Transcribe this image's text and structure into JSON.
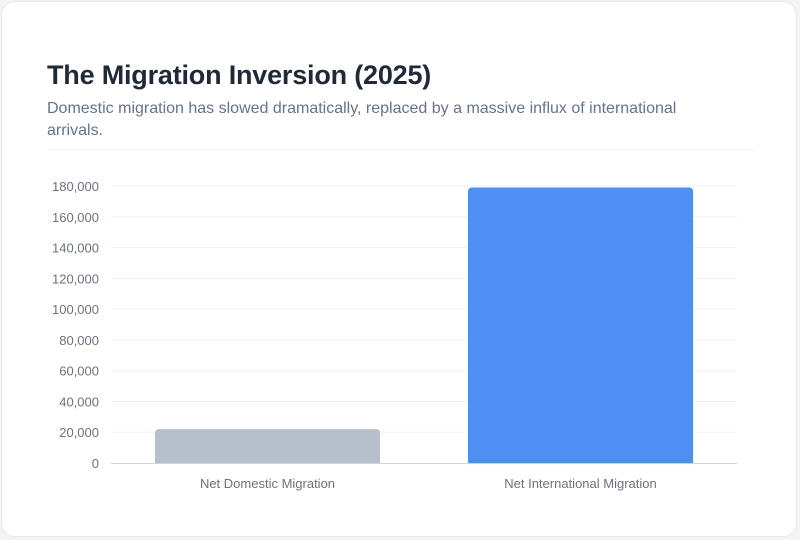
{
  "header": {
    "title": "The Migration Inversion (2025)",
    "subtitle": "Domestic migration has slowed dramatically, replaced by a massive influx of international arrivals."
  },
  "chart_data": {
    "type": "bar",
    "title": "The Migration Inversion (2025)",
    "subtitle": "Domestic migration has slowed dramatically, replaced by a massive influx of international arrivals.",
    "categories": [
      "Net Domestic Migration",
      "Net International Migration"
    ],
    "values": [
      22000,
      179000
    ],
    "colors": [
      "#b6bfcc",
      "#4e8ff3"
    ],
    "ylim": [
      0,
      180000
    ],
    "yticks": [
      0,
      20000,
      40000,
      60000,
      80000,
      100000,
      120000,
      140000,
      160000,
      180000
    ],
    "ytick_labels": [
      "0",
      "20,000",
      "40,000",
      "60,000",
      "80,000",
      "100,000",
      "120,000",
      "140,000",
      "160,000",
      "180,000"
    ],
    "xlabel": "",
    "ylabel": "",
    "grid": true,
    "legend": "none"
  }
}
